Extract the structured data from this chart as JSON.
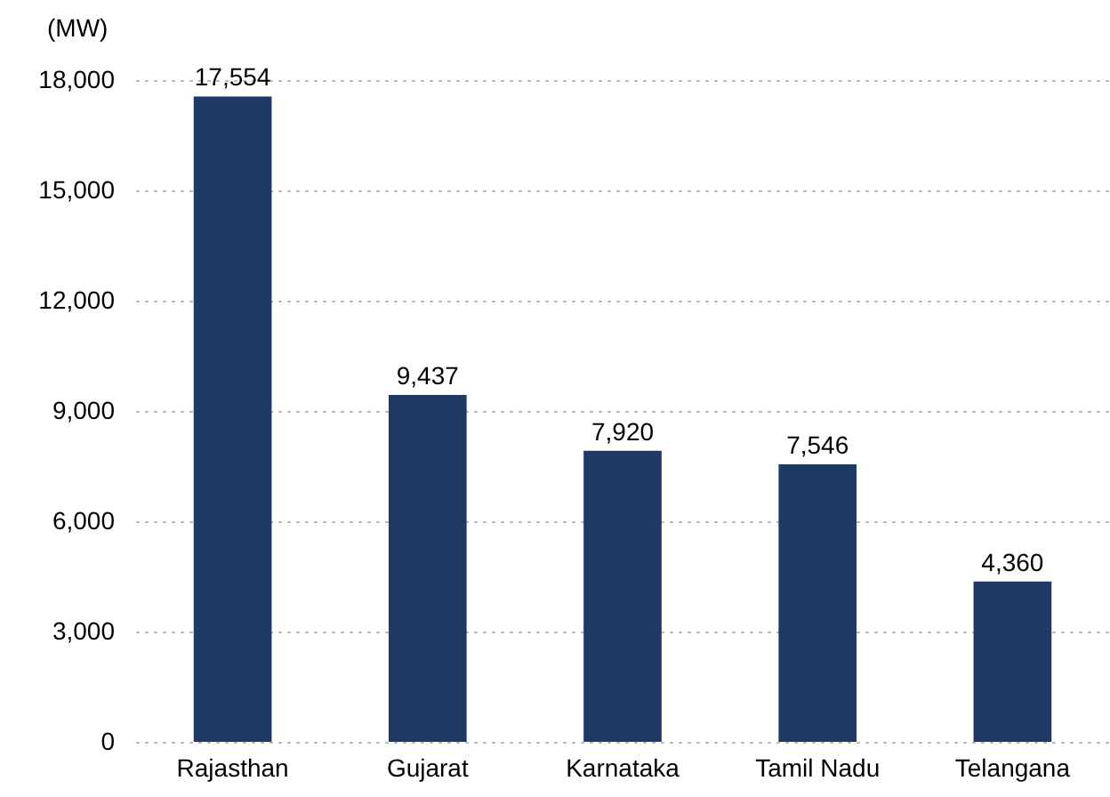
{
  "chart_data": {
    "type": "bar",
    "ylabel": "(MW)",
    "categories": [
      "Rajasthan",
      "Gujarat",
      "Karnataka",
      "Tamil Nadu",
      "Telangana"
    ],
    "values": [
      17554,
      9437,
      7920,
      7546,
      4360
    ],
    "value_labels": [
      "17,554",
      "9,437",
      "7,920",
      "7,546",
      "4,360"
    ],
    "color": "#203864",
    "ylim": [
      0,
      18000
    ],
    "yticks": [
      0,
      {
        "value": 3000,
        "label": "3,000"
      },
      {
        "value": 6000,
        "label": "6,000"
      },
      {
        "value": 9000,
        "label": "9,000"
      },
      {
        "value": 12000,
        "label": "12,000"
      },
      {
        "value": 15000,
        "label": "15,000"
      },
      {
        "value": 18000,
        "label": "18,000"
      }
    ],
    "grid": "y"
  }
}
